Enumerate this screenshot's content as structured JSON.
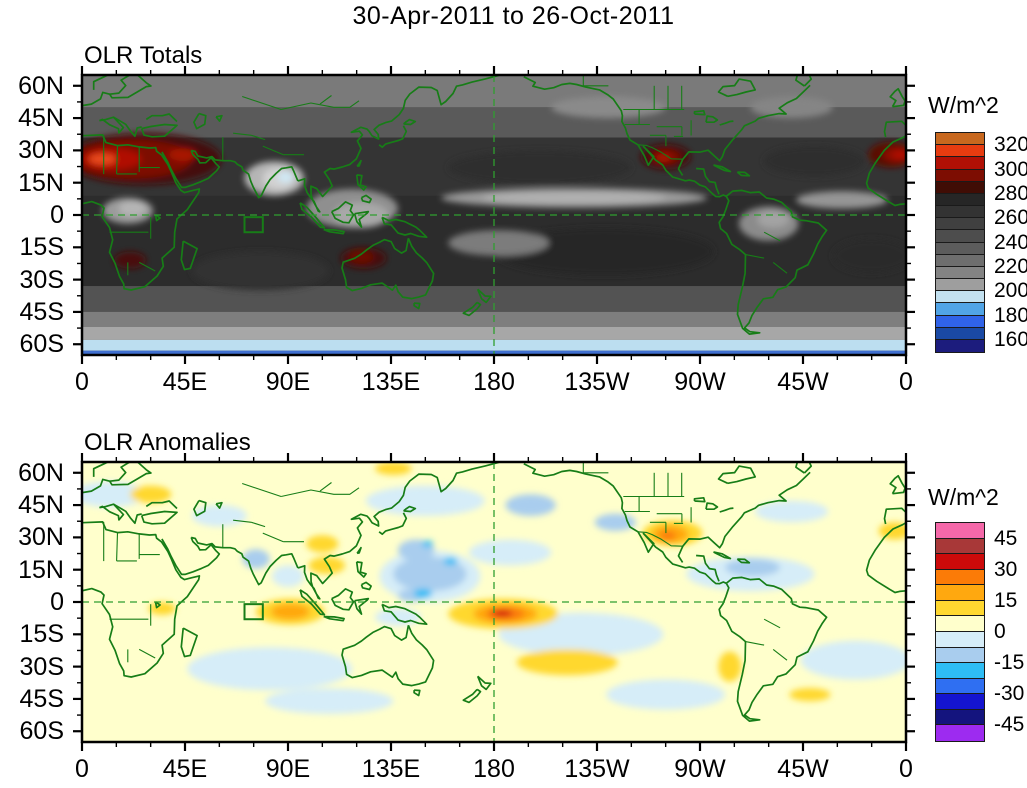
{
  "main_title": "30-Apr-2011 to 26-Oct-2011",
  "panels": [
    {
      "title": "OLR Totals",
      "colorbar": {
        "units": "W/m^2",
        "tick_labels": [
          "320",
          "300",
          "280",
          "260",
          "240",
          "220",
          "200",
          "180",
          "160"
        ],
        "colors_top_to_bottom": [
          "#c8681e",
          "#e73c10",
          "#b01005",
          "#7d0d02",
          "#400d05",
          "#262626",
          "#333333",
          "#404040",
          "#4d4d4d",
          "#5c5c5c",
          "#6e6e6e",
          "#838383",
          "#9e9e9e",
          "#c3e1f0",
          "#51a4e6",
          "#3063e8",
          "#1a49a4",
          "#1c1c7d"
        ]
      }
    },
    {
      "title": "OLR Anomalies",
      "colorbar": {
        "units": "W/m^2",
        "tick_labels": [
          "45",
          "30",
          "15",
          "0",
          "-15",
          "-30",
          "-45"
        ],
        "colors_top_to_bottom": [
          "#f568a9",
          "#a83838",
          "#cc0a0a",
          "#fb7b07",
          "#ffa80f",
          "#ffd830",
          "#ffffcc",
          "#d6edf8",
          "#a9cdee",
          "#2ebdf5",
          "#2f6ff2",
          "#1414cf",
          "#14147e",
          "#9d2bf0"
        ]
      }
    }
  ],
  "axes": {
    "lat_labels": [
      "60N",
      "45N",
      "30N",
      "15N",
      "0",
      "15S",
      "30S",
      "45S",
      "60S"
    ],
    "lon_labels": [
      "0",
      "45E",
      "90E",
      "135E",
      "180",
      "135W",
      "90W",
      "45W",
      "0"
    ]
  },
  "map_style": {
    "coastline_color": "#177d17",
    "reference_line_color": "#2f9e2f",
    "reference_lines": "dashed green lines at the equator and at 180 longitude; small green index box near 70-80E, 0-8S"
  },
  "chart_data": [
    {
      "type": "heatmap",
      "title": "OLR Totals",
      "units": "W/m^2",
      "projection": "global cylindrical map, longitude 0 to 360 (Greenwich at both edges)",
      "xlabel_ticks": [
        "0",
        "45E",
        "90E",
        "135E",
        "180",
        "135W",
        "90W",
        "45W",
        "0"
      ],
      "ylabel_ticks": [
        "60N",
        "45N",
        "30N",
        "15N",
        "0",
        "15S",
        "30S",
        "45S",
        "60S"
      ],
      "lon_range": [
        0,
        360
      ],
      "lat_range": [
        -65,
        65
      ],
      "contour_levels": [
        160,
        170,
        180,
        190,
        200,
        210,
        220,
        230,
        240,
        250,
        260,
        270,
        280,
        290,
        300,
        310,
        320
      ],
      "colorbar_tick_labels": [
        320,
        300,
        280,
        260,
        240,
        220,
        200,
        180,
        160
      ],
      "palette_high_to_low": [
        "#c8681e",
        "#e73c10",
        "#b01005",
        "#7d0d02",
        "#400d05",
        "#262626",
        "#333333",
        "#404040",
        "#4d4d4d",
        "#5c5c5c",
        "#6e6e6e",
        "#838383",
        "#9e9e9e",
        "#c3e1f0",
        "#51a4e6",
        "#3063e8",
        "#1a49a4",
        "#1c1c7d"
      ],
      "features": [
        {
          "region": "Sahara and Arabian Peninsula",
          "lon": 25,
          "lat": 26,
          "value": "300-330 (dark red, orange core)"
        },
        {
          "region": "NW Africa at right map edge",
          "lon": 354,
          "lat": 28,
          "value": "300-320"
        },
        {
          "region": "Mexico / SW United States",
          "lon": 255,
          "lat": 27,
          "value": "290-310"
        },
        {
          "region": "NW Australia interior",
          "lon": 123,
          "lat": -20,
          "value": "290-300"
        },
        {
          "region": "southern Africa (Kalahari)",
          "lon": 21,
          "lat": -21,
          "value": "280-290"
        },
        {
          "region": "India / Bay of Bengal monsoon convection",
          "lon": 86,
          "lat": 17,
          "value": "190-210 (pale blue spot)"
        },
        {
          "region": "Maritime Continent warm pool",
          "lon": 120,
          "lat": 2,
          "value": "200-220"
        },
        {
          "region": "Pacific ITCZ band near 8N",
          "lon": 215,
          "lat": 8,
          "value": "210-230"
        },
        {
          "region": "equatorial Africa",
          "lon": 20,
          "lat": 2,
          "value": "210-225"
        },
        {
          "region": "Amazon basin",
          "lon": 300,
          "lat": -3,
          "value": "220-240"
        },
        {
          "region": "subtropical south-central Pacific",
          "lon": 228,
          "lat": -17,
          "value": "270-285 (very dark)"
        },
        {
          "region": "Southern Ocean band near 60S",
          "lon": 180,
          "lat": -61,
          "value": "<200 (light blue band, <170 at bottom edge)"
        }
      ]
    },
    {
      "type": "heatmap",
      "title": "OLR Anomalies",
      "units": "W/m^2",
      "projection": "global cylindrical map, longitude 0 to 360 (Greenwich at both edges)",
      "xlabel_ticks": [
        "0",
        "45E",
        "90E",
        "135E",
        "180",
        "135W",
        "90W",
        "45W",
        "0"
      ],
      "ylabel_ticks": [
        "60N",
        "45N",
        "30N",
        "15N",
        "0",
        "15S",
        "30S",
        "45S",
        "60S"
      ],
      "lon_range": [
        0,
        360
      ],
      "lat_range": [
        -65,
        65
      ],
      "contour_levels": [
        -45,
        -37.5,
        -30,
        -22.5,
        -15,
        -7.5,
        0,
        7.5,
        15,
        22.5,
        30,
        37.5,
        45
      ],
      "colorbar_tick_labels": [
        45,
        30,
        15,
        0,
        -15,
        -30,
        -45
      ],
      "palette_high_to_low": [
        "#f568a9",
        "#a83838",
        "#cc0a0a",
        "#fb7b07",
        "#ffa80f",
        "#ffd830",
        "#ffffcc",
        "#d6edf8",
        "#a9cdee",
        "#2ebdf5",
        "#2f6ff2",
        "#1414cf",
        "#14147e",
        "#9d2bf0"
      ],
      "features": [
        {
          "region": "equatorial central Pacific just south of equator near Date Line",
          "lon": 184,
          "lat": -5,
          "value": "+30 to +45 (red core)"
        },
        {
          "region": "central Indian Ocean south of equator",
          "lon": 90,
          "lat": -5,
          "value": "+15 to +30 (orange core)"
        },
        {
          "region": "southern United States / Texas",
          "lon": 257,
          "lat": 31,
          "value": "+15 to +30"
        },
        {
          "region": "western North Pacific east of Philippines",
          "lon": 152,
          "lat": 13,
          "value": "-15 to -25 (cyan spots)"
        },
        {
          "region": "Caribbean / tropical North Atlantic",
          "lon": 292,
          "lat": 14,
          "value": "-7 to -15"
        },
        {
          "region": "south Indian Ocean",
          "lon": 82,
          "lat": -31,
          "value": "-5 to -10"
        },
        {
          "region": "SW Pacific diagonal band",
          "lon": 212,
          "lat": -28,
          "value": "+7 to +15"
        },
        {
          "region": "SE Asia / southern China",
          "lon": 106,
          "lat": 22,
          "value": "+7 to +15"
        },
        {
          "region": "NW Africa / Iberia",
          "lon": 355,
          "lat": 33,
          "value": "+7 to +15"
        },
        {
          "region": "background elsewhere",
          "lon": 0,
          "lat": 0,
          "value": "-7 to +7 (pale yellow / pale blue)"
        }
      ]
    }
  ]
}
